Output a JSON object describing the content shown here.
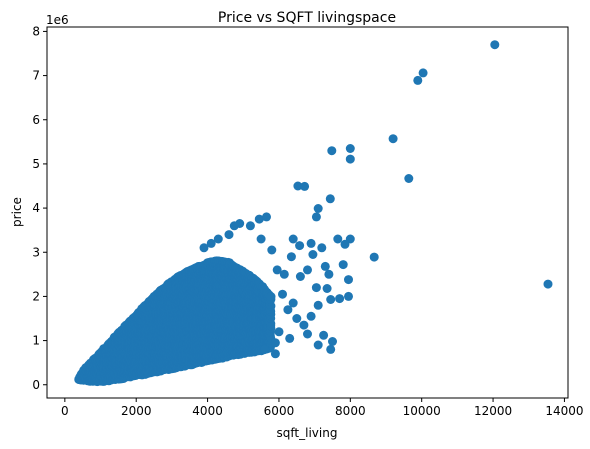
{
  "chart_data": {
    "type": "scatter",
    "title": "Price vs SQFT livingspace",
    "xlabel": "sqft_living",
    "ylabel": "price",
    "y_offset_label": "1e6",
    "xlim": [
      -500,
      14100
    ],
    "ylim": [
      -0.3,
      8.1
    ],
    "y_scale_factor": 1000000,
    "xticks": [
      0,
      2000,
      4000,
      6000,
      8000,
      10000,
      12000,
      14000
    ],
    "xtick_labels": [
      "0",
      "2000",
      "4000",
      "6000",
      "8000",
      "10000",
      "12000",
      "14000"
    ],
    "yticks": [
      0,
      1,
      2,
      3,
      4,
      5,
      6,
      7,
      8
    ],
    "ytick_labels": [
      "0",
      "1",
      "2",
      "3",
      "4",
      "5",
      "6",
      "7",
      "8"
    ],
    "grid": false,
    "marker_color": "#1f77b4",
    "outliers": [
      {
        "x": 12050,
        "y": 7.7
      },
      {
        "x": 10040,
        "y": 7.06
      },
      {
        "x": 9890,
        "y": 6.89
      },
      {
        "x": 9200,
        "y": 5.57
      },
      {
        "x": 8000,
        "y": 5.35
      },
      {
        "x": 7480,
        "y": 5.3
      },
      {
        "x": 8000,
        "y": 5.11
      },
      {
        "x": 9640,
        "y": 4.67
      },
      {
        "x": 6530,
        "y": 4.5
      },
      {
        "x": 6720,
        "y": 4.49
      },
      {
        "x": 7440,
        "y": 4.21
      },
      {
        "x": 7100,
        "y": 3.99
      },
      {
        "x": 7050,
        "y": 3.8
      },
      {
        "x": 13540,
        "y": 2.28
      },
      {
        "x": 8670,
        "y": 2.89
      },
      {
        "x": 8000,
        "y": 3.3
      },
      {
        "x": 7650,
        "y": 3.3
      },
      {
        "x": 7850,
        "y": 3.18
      },
      {
        "x": 7200,
        "y": 3.1
      },
      {
        "x": 6900,
        "y": 3.2
      },
      {
        "x": 6400,
        "y": 3.3
      },
      {
        "x": 6580,
        "y": 3.15
      },
      {
        "x": 7300,
        "y": 2.68
      },
      {
        "x": 7400,
        "y": 2.5
      },
      {
        "x": 7800,
        "y": 2.72
      },
      {
        "x": 7950,
        "y": 2.38
      },
      {
        "x": 7050,
        "y": 2.2
      },
      {
        "x": 7350,
        "y": 2.18
      },
      {
        "x": 7700,
        "y": 1.95
      },
      {
        "x": 7950,
        "y": 2.0
      },
      {
        "x": 7450,
        "y": 1.93
      },
      {
        "x": 7100,
        "y": 1.8
      },
      {
        "x": 6900,
        "y": 1.55
      },
      {
        "x": 6700,
        "y": 1.35
      },
      {
        "x": 7250,
        "y": 1.12
      },
      {
        "x": 6800,
        "y": 1.15
      },
      {
        "x": 7450,
        "y": 0.8
      },
      {
        "x": 7100,
        "y": 0.9
      },
      {
        "x": 7500,
        "y": 0.98
      },
      {
        "x": 6150,
        "y": 2.5
      },
      {
        "x": 6350,
        "y": 2.9
      },
      {
        "x": 5800,
        "y": 3.05
      },
      {
        "x": 5500,
        "y": 3.3
      },
      {
        "x": 5200,
        "y": 3.6
      },
      {
        "x": 5450,
        "y": 3.75
      },
      {
        "x": 5650,
        "y": 3.8
      },
      {
        "x": 4900,
        "y": 3.65
      },
      {
        "x": 4750,
        "y": 3.6
      },
      {
        "x": 4600,
        "y": 3.4
      },
      {
        "x": 4300,
        "y": 3.3
      },
      {
        "x": 3900,
        "y": 3.1
      },
      {
        "x": 4100,
        "y": 3.2
      },
      {
        "x": 5950,
        "y": 2.6
      },
      {
        "x": 6100,
        "y": 2.05
      },
      {
        "x": 6400,
        "y": 1.85
      },
      {
        "x": 6600,
        "y": 2.45
      },
      {
        "x": 6250,
        "y": 1.7
      },
      {
        "x": 6500,
        "y": 1.5
      },
      {
        "x": 6000,
        "y": 1.2
      },
      {
        "x": 5900,
        "y": 0.95
      },
      {
        "x": 6300,
        "y": 1.05
      },
      {
        "x": 5600,
        "y": 0.8
      },
      {
        "x": 5900,
        "y": 0.7
      },
      {
        "x": 6800,
        "y": 2.6
      },
      {
        "x": 6950,
        "y": 2.95
      }
    ],
    "clusters": [
      {
        "x": 400,
        "y": 0.13
      },
      {
        "x": 500,
        "y": 0.11
      },
      {
        "x": 500,
        "y": 0.3
      },
      {
        "x": 600,
        "y": 0.1
      },
      {
        "x": 600,
        "y": 0.38
      },
      {
        "x": 700,
        "y": 0.09
      },
      {
        "x": 700,
        "y": 0.47
      },
      {
        "x": 800,
        "y": 0.09
      },
      {
        "x": 800,
        "y": 0.56
      },
      {
        "x": 900,
        "y": 0.08
      },
      {
        "x": 900,
        "y": 0.64
      },
      {
        "x": 1000,
        "y": 0.08
      },
      {
        "x": 1000,
        "y": 0.73
      },
      {
        "x": 1100,
        "y": 0.09
      },
      {
        "x": 1100,
        "y": 0.81
      },
      {
        "x": 1200,
        "y": 0.1
      },
      {
        "x": 1200,
        "y": 0.9
      },
      {
        "x": 1300,
        "y": 0.11
      },
      {
        "x": 1300,
        "y": 0.98
      },
      {
        "x": 1400,
        "y": 0.12
      },
      {
        "x": 1400,
        "y": 1.07
      },
      {
        "x": 1500,
        "y": 0.14
      },
      {
        "x": 1500,
        "y": 1.15
      },
      {
        "x": 1600,
        "y": 0.15
      },
      {
        "x": 1600,
        "y": 1.24
      },
      {
        "x": 1800,
        "y": 0.18
      },
      {
        "x": 1800,
        "y": 1.41
      },
      {
        "x": 2000,
        "y": 0.21
      },
      {
        "x": 2000,
        "y": 1.58
      },
      {
        "x": 2200,
        "y": 0.24
      },
      {
        "x": 2200,
        "y": 1.75
      },
      {
        "x": 2500,
        "y": 0.29
      },
      {
        "x": 2500,
        "y": 2.0
      },
      {
        "x": 2800,
        "y": 0.34
      },
      {
        "x": 2800,
        "y": 2.2
      },
      {
        "x": 3100,
        "y": 0.39
      },
      {
        "x": 3100,
        "y": 2.4
      },
      {
        "x": 3400,
        "y": 0.44
      },
      {
        "x": 3400,
        "y": 2.55
      },
      {
        "x": 3700,
        "y": 0.49
      },
      {
        "x": 3700,
        "y": 2.65
      },
      {
        "x": 4000,
        "y": 0.55
      },
      {
        "x": 4000,
        "y": 2.75
      },
      {
        "x": 4300,
        "y": 0.6
      },
      {
        "x": 4300,
        "y": 2.8
      },
      {
        "x": 4600,
        "y": 0.65
      },
      {
        "x": 4600,
        "y": 2.75
      },
      {
        "x": 4900,
        "y": 0.7
      },
      {
        "x": 4900,
        "y": 2.6
      },
      {
        "x": 5200,
        "y": 0.74
      },
      {
        "x": 5200,
        "y": 2.45
      },
      {
        "x": 5500,
        "y": 0.78
      },
      {
        "x": 5500,
        "y": 2.25
      },
      {
        "x": 5800,
        "y": 0.85
      },
      {
        "x": 5800,
        "y": 1.95
      }
    ]
  }
}
